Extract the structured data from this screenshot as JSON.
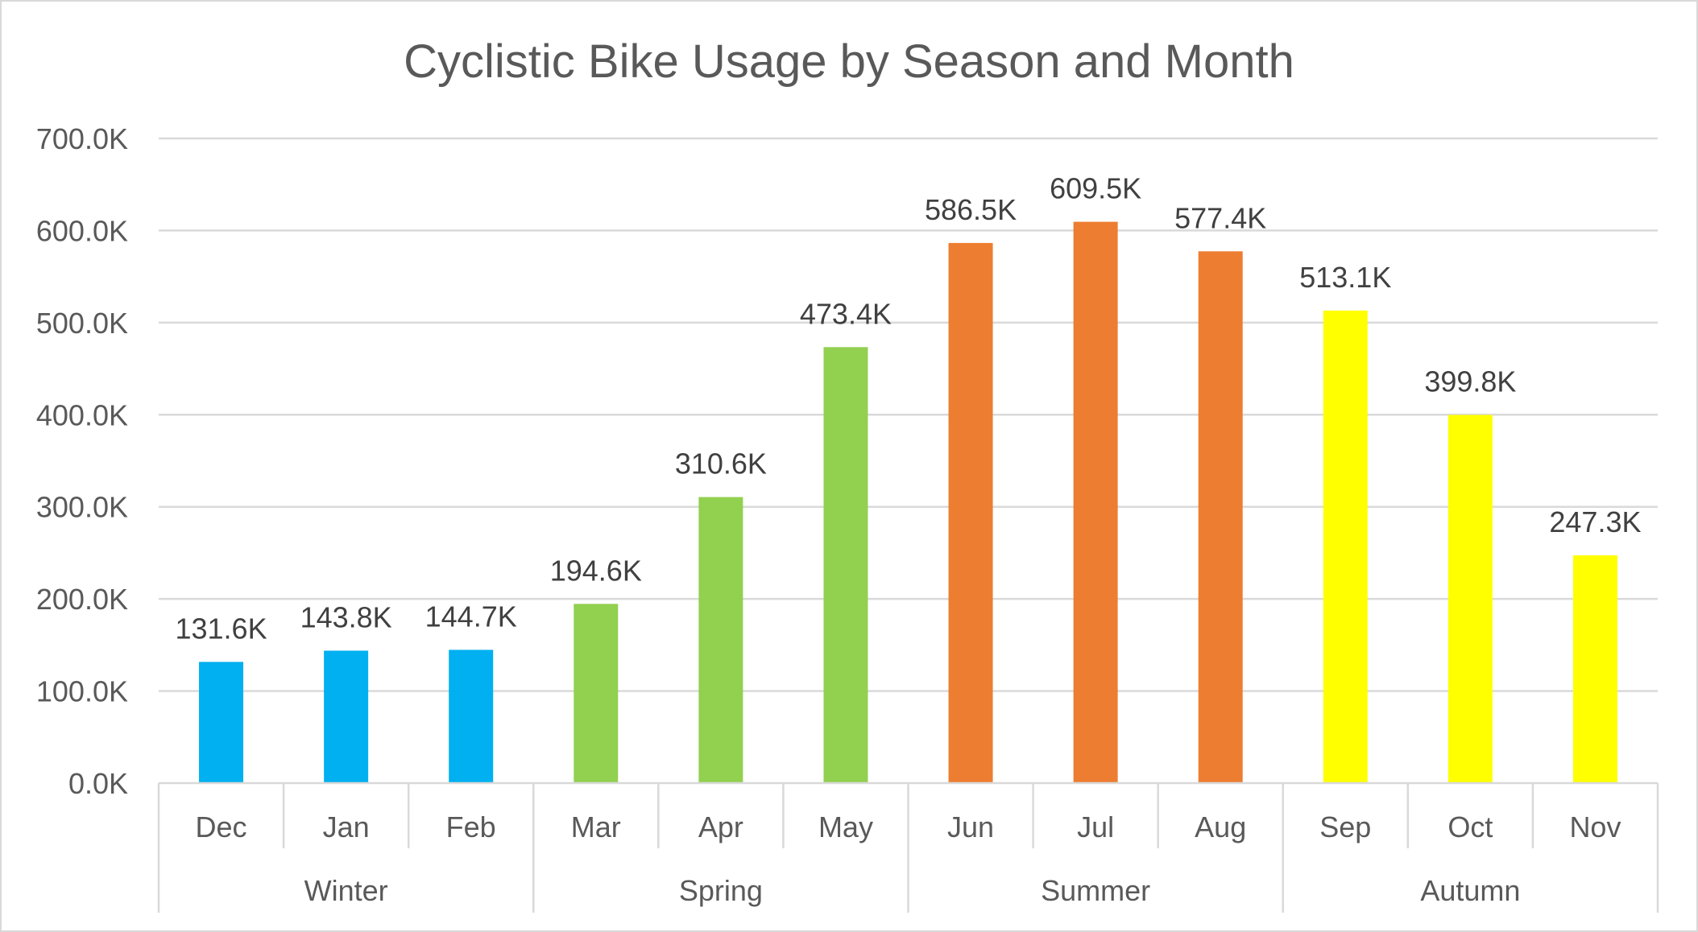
{
  "chart_data": {
    "type": "bar",
    "title": "Cyclistic Bike Usage by Season and Month",
    "xlabel": "",
    "ylabel": "",
    "ylim": [
      0,
      700000
    ],
    "y_ticks": [
      {
        "value": 0,
        "label": "0.0K"
      },
      {
        "value": 100000,
        "label": "100.0K"
      },
      {
        "value": 200000,
        "label": "200.0K"
      },
      {
        "value": 300000,
        "label": "300.0K"
      },
      {
        "value": 400000,
        "label": "400.0K"
      },
      {
        "value": 500000,
        "label": "500.0K"
      },
      {
        "value": 600000,
        "label": "600.0K"
      },
      {
        "value": 700000,
        "label": "700.0K"
      }
    ],
    "grid": true,
    "legend": "none",
    "categories": [
      "Dec",
      "Jan",
      "Feb",
      "Mar",
      "Apr",
      "May",
      "Jun",
      "Jul",
      "Aug",
      "Sep",
      "Oct",
      "Nov"
    ],
    "values": [
      131600,
      143800,
      144700,
      194600,
      310600,
      473400,
      586500,
      609500,
      577400,
      513100,
      399800,
      247300
    ],
    "data_labels": [
      "131.6K",
      "143.8K",
      "144.7K",
      "194.6K",
      "310.6K",
      "473.4K",
      "586.5K",
      "609.5K",
      "577.4K",
      "513.1K",
      "399.8K",
      "247.3K"
    ],
    "groups": [
      {
        "label": "Winter",
        "months": [
          "Dec",
          "Jan",
          "Feb"
        ],
        "color": "#00b0f0"
      },
      {
        "label": "Spring",
        "months": [
          "Mar",
          "Apr",
          "May"
        ],
        "color": "#92d050"
      },
      {
        "label": "Summer",
        "months": [
          "Jun",
          "Jul",
          "Aug"
        ],
        "color": "#ed7d31"
      },
      {
        "label": "Autumn",
        "months": [
          "Sep",
          "Oct",
          "Nov"
        ],
        "color": "#ffff00"
      }
    ]
  }
}
